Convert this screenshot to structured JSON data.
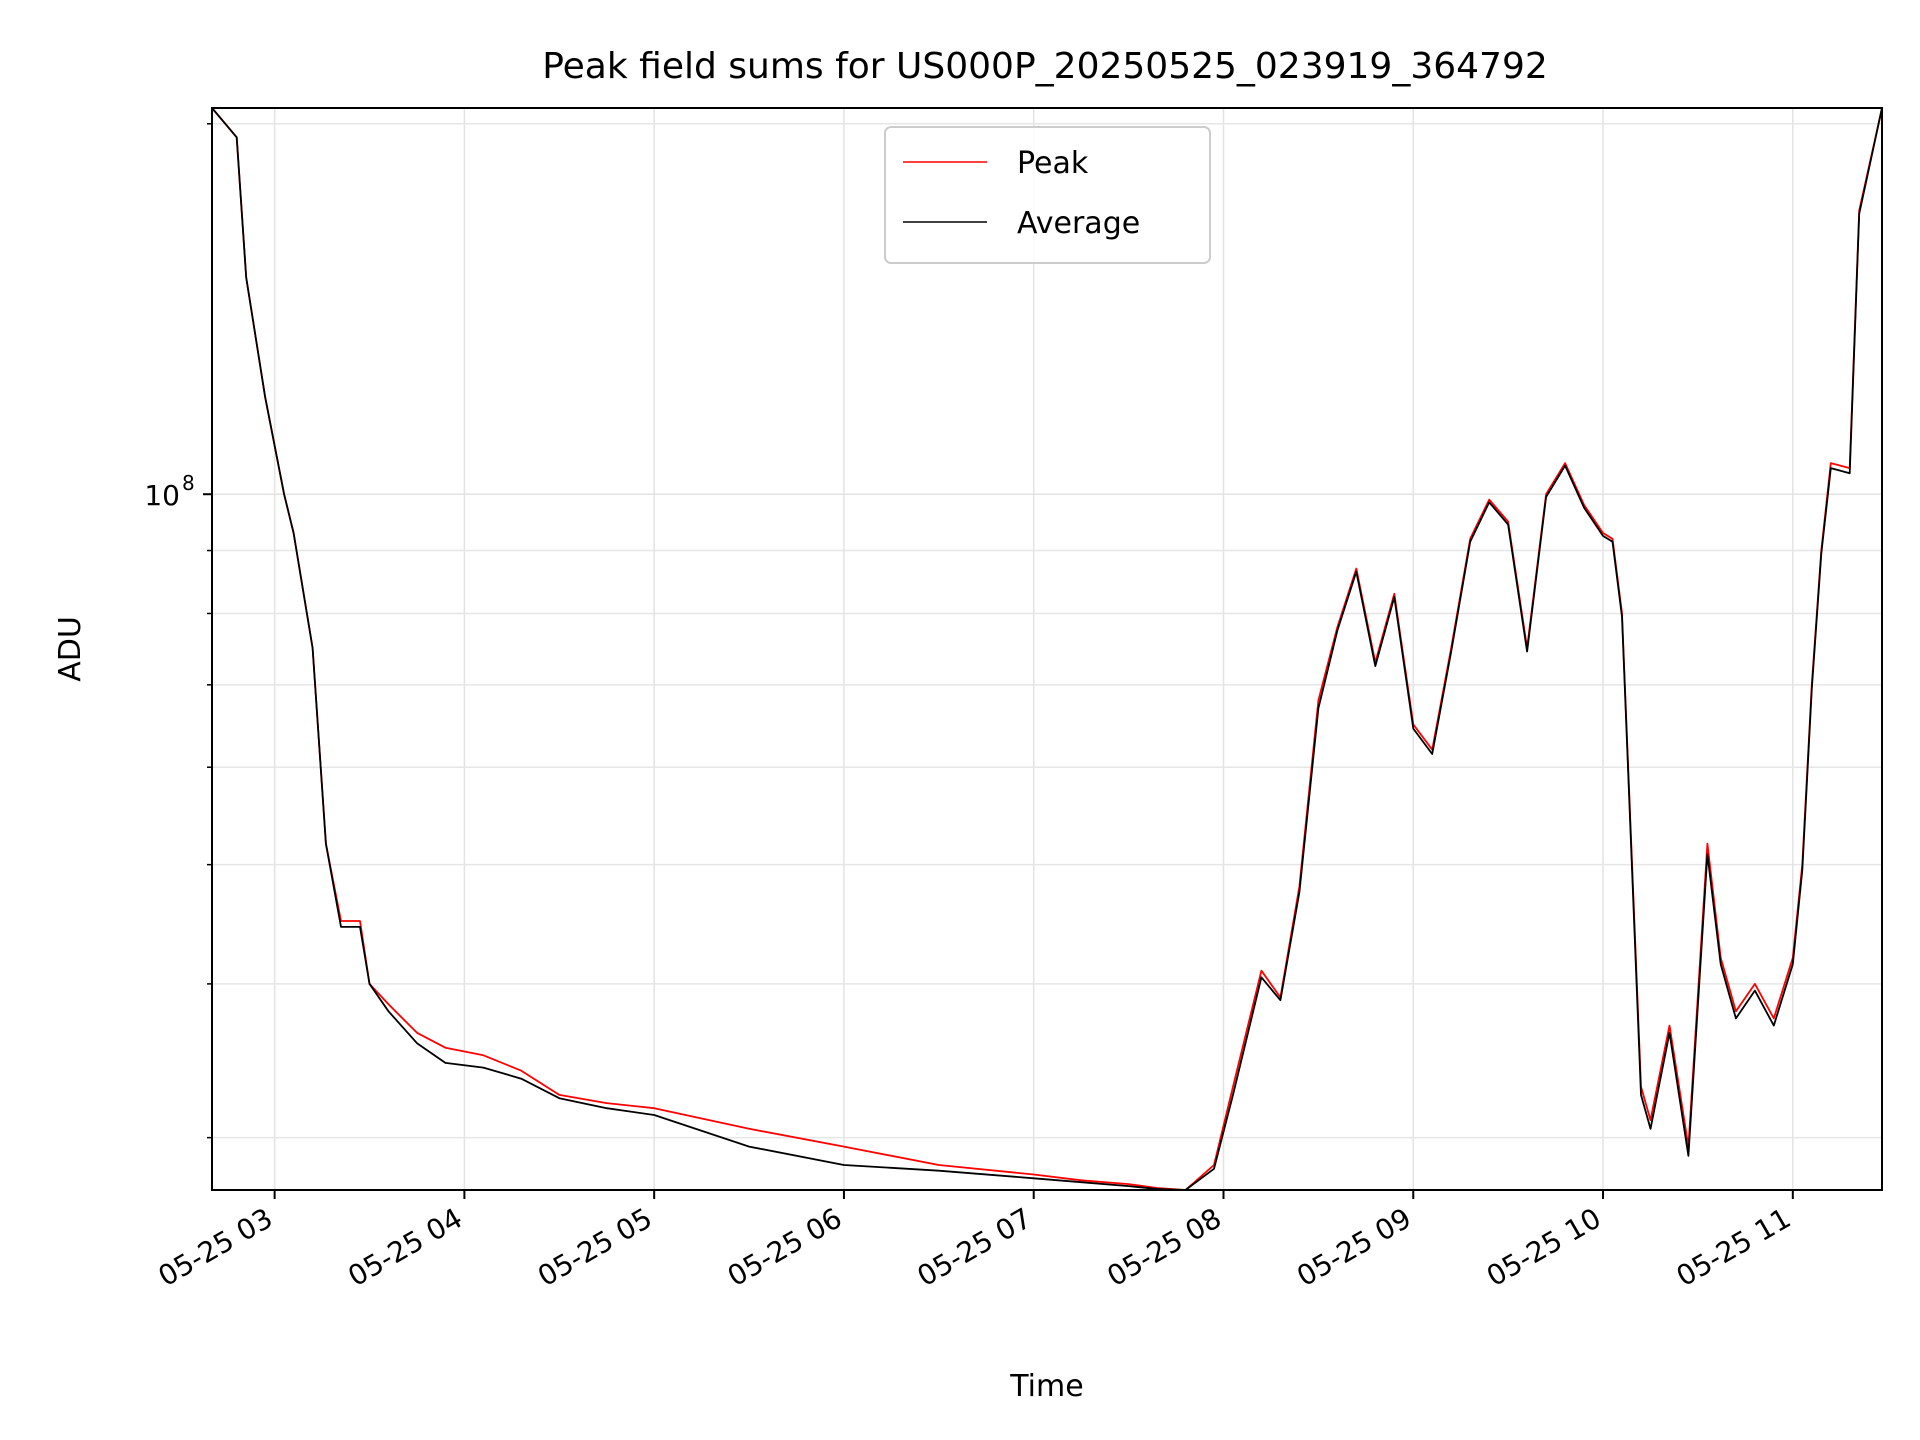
{
  "chart_data": {
    "type": "line",
    "title": "Peak field sums for US000P_20250525_023919_364792",
    "xlabel": "Time",
    "ylabel": "ADU",
    "x_tick_labels": [
      "05-25 03",
      "05-25 04",
      "05-25 05",
      "05-25 06",
      "05-25 07",
      "05-25 08",
      "05-25 09",
      "05-25 10",
      "05-25 11"
    ],
    "y_tick_label": {
      "base": "10",
      "exponent": "8"
    },
    "x_unit": "hours since 05-25 00:00",
    "xlim": [
      2.67,
      11.47
    ],
    "ylim": [
      27200000,
      206000000
    ],
    "yscale": "log",
    "grid": true,
    "legend_position": "upper center",
    "series": [
      {
        "name": "Peak",
        "color": "#ff0000",
        "x": [
          2.67,
          2.8,
          2.85,
          2.95,
          3.05,
          3.1,
          3.2,
          3.27,
          3.35,
          3.45,
          3.5,
          3.6,
          3.75,
          3.9,
          4.1,
          4.3,
          4.5,
          4.75,
          5.0,
          5.5,
          6.0,
          6.5,
          7.0,
          7.25,
          7.5,
          7.65,
          7.8,
          7.95,
          8.05,
          8.2,
          8.3,
          8.4,
          8.5,
          8.6,
          8.7,
          8.8,
          8.9,
          9.0,
          9.1,
          9.2,
          9.3,
          9.4,
          9.5,
          9.6,
          9.7,
          9.8,
          9.9,
          10.0,
          10.05,
          10.1,
          10.2,
          10.25,
          10.35,
          10.45,
          10.55,
          10.62,
          10.7,
          10.8,
          10.9,
          11.0,
          11.05,
          11.1,
          11.15,
          11.2,
          11.3,
          11.35,
          11.47
        ],
        "y": [
          206000000,
          195000000,
          150000000,
          120000000,
          100000000,
          93000000,
          75000000,
          52000000,
          45000000,
          45000000,
          40000000,
          38500000,
          36500000,
          35500000,
          35000000,
          34000000,
          32500000,
          32000000,
          31700000,
          30500000,
          29500000,
          28500000,
          28000000,
          27700000,
          27500000,
          27300000,
          27200000,
          28500000,
          33000000,
          41000000,
          39000000,
          48000000,
          68000000,
          78000000,
          87000000,
          73000000,
          83000000,
          65000000,
          62000000,
          75000000,
          92000000,
          99000000,
          95000000,
          75000000,
          100000000,
          106000000,
          98000000,
          93000000,
          92000000,
          80000000,
          33000000,
          31000000,
          37000000,
          29500000,
          52000000,
          42000000,
          38000000,
          40000000,
          37500000,
          42000000,
          50000000,
          70000000,
          90000000,
          106000000,
          105000000,
          170000000,
          206000000
        ]
      },
      {
        "name": "Average",
        "color": "#000000",
        "x": [
          2.67,
          2.8,
          2.85,
          2.95,
          3.05,
          3.1,
          3.2,
          3.27,
          3.35,
          3.45,
          3.5,
          3.6,
          3.75,
          3.9,
          4.1,
          4.3,
          4.5,
          4.75,
          5.0,
          5.5,
          6.0,
          6.5,
          7.0,
          7.25,
          7.5,
          7.65,
          7.8,
          7.95,
          8.05,
          8.2,
          8.3,
          8.4,
          8.5,
          8.6,
          8.7,
          8.8,
          8.9,
          9.0,
          9.1,
          9.2,
          9.3,
          9.4,
          9.5,
          9.6,
          9.7,
          9.8,
          9.9,
          10.0,
          10.05,
          10.1,
          10.2,
          10.25,
          10.35,
          10.45,
          10.55,
          10.62,
          10.7,
          10.8,
          10.9,
          11.0,
          11.05,
          11.1,
          11.15,
          11.2,
          11.3,
          11.35,
          11.47
        ],
        "y": [
          206000000,
          195000000,
          150000000,
          120000000,
          100000000,
          93000000,
          75000000,
          52000000,
          44500000,
          44500000,
          40000000,
          38000000,
          35800000,
          34500000,
          34200000,
          33500000,
          32300000,
          31700000,
          31300000,
          29500000,
          28500000,
          28200000,
          27800000,
          27600000,
          27400000,
          27250000,
          27200000,
          28300000,
          32500000,
          40500000,
          38800000,
          47500000,
          67000000,
          77500000,
          86500000,
          72500000,
          82500000,
          64500000,
          61500000,
          74500000,
          91500000,
          98500000,
          94500000,
          74500000,
          99500000,
          105500000,
          97500000,
          92500000,
          91500000,
          79500000,
          32500000,
          30500000,
          36500000,
          29000000,
          51000000,
          41500000,
          37500000,
          39500000,
          37000000,
          41500000,
          49500000,
          69500000,
          89500000,
          105000000,
          104000000,
          169000000,
          206000000
        ]
      }
    ]
  }
}
